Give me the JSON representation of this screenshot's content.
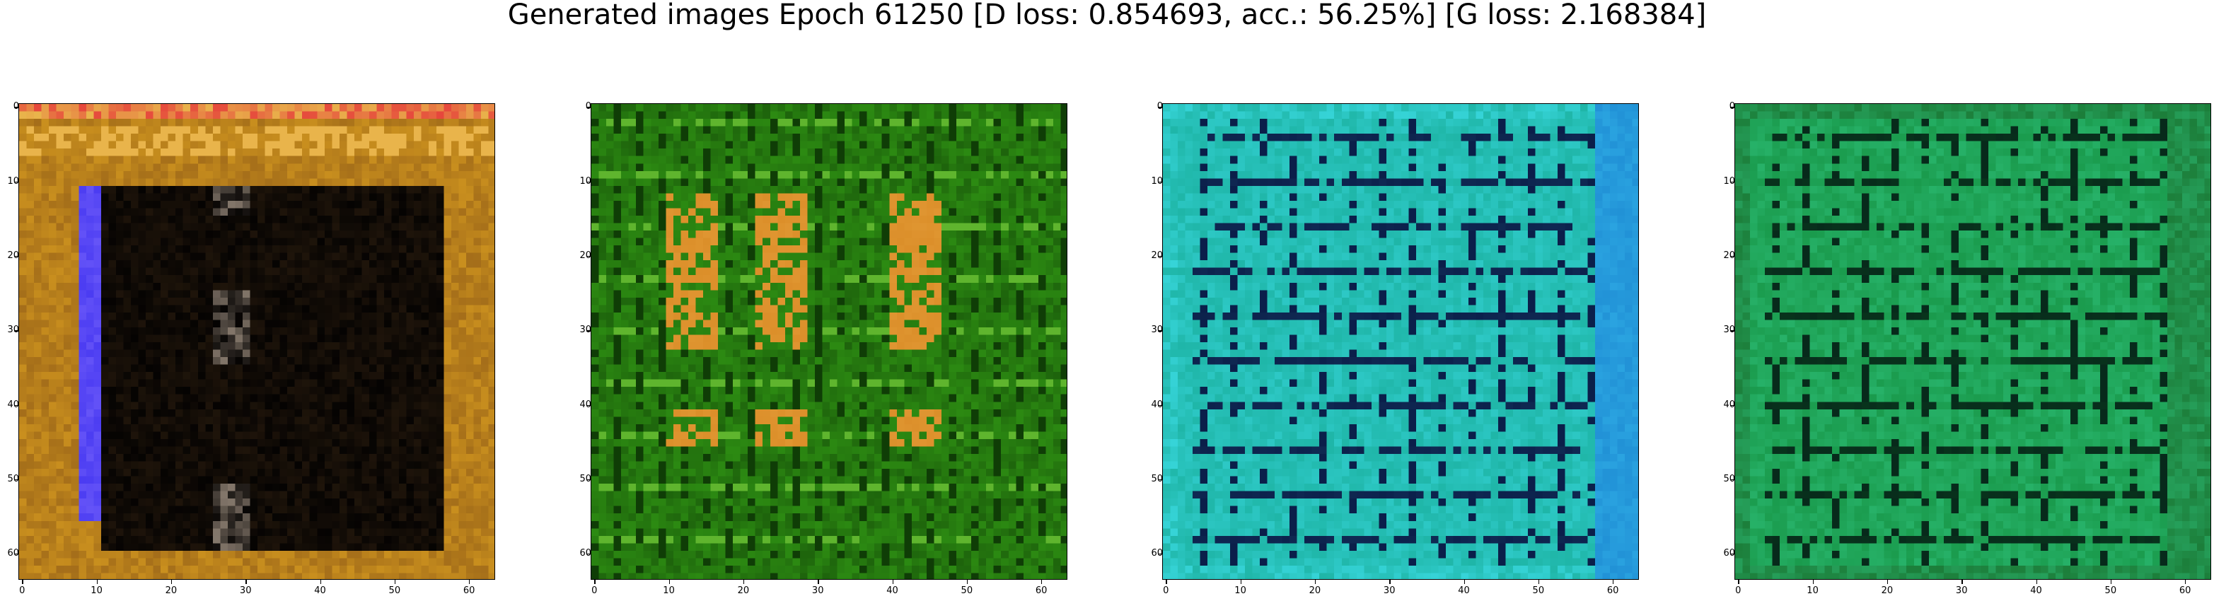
{
  "figure": {
    "title": "Generated images Epoch 61250 [D loss: 0.854693, acc.: 56.25%] [G loss: 2.168384]"
  },
  "panels": [
    {
      "id": "sample-1",
      "palette": {
        "border": "#c98f1e",
        "inner": "#050302",
        "accent": "#4b3cf2",
        "stripe": "#e9b44b"
      },
      "xticks": [
        "0",
        "10",
        "20",
        "30",
        "40",
        "50",
        "60"
      ],
      "yticks": [
        "0",
        "10",
        "20",
        "30",
        "40",
        "50",
        "60"
      ]
    },
    {
      "id": "sample-2",
      "palette": {
        "base": "#2c8a12",
        "dark": "#0f3d06",
        "warm": "#d98b26",
        "stripe": "#5fb52e"
      },
      "xticks": [
        "0",
        "10",
        "20",
        "30",
        "40",
        "50",
        "60"
      ],
      "yticks": [
        "0",
        "10",
        "20",
        "30",
        "40",
        "50",
        "60"
      ]
    },
    {
      "id": "sample-3",
      "palette": {
        "base": "#1fb6a8",
        "dark": "#0b1f4a",
        "light": "#36d4d8",
        "edge": "#2aa3e0"
      },
      "xticks": [
        "0",
        "10",
        "20",
        "30",
        "40",
        "50",
        "60"
      ],
      "yticks": [
        "0",
        "10",
        "20",
        "30",
        "40",
        "50",
        "60"
      ]
    },
    {
      "id": "sample-4",
      "palette": {
        "base": "#1a9b4d",
        "dark": "#072a1b",
        "light": "#2fc07a",
        "edge": "#1c7e3a"
      },
      "xticks": [
        "0",
        "10",
        "20",
        "30",
        "40",
        "50",
        "60"
      ],
      "yticks": [
        "0",
        "10",
        "20",
        "30",
        "40",
        "50",
        "60"
      ]
    }
  ]
}
